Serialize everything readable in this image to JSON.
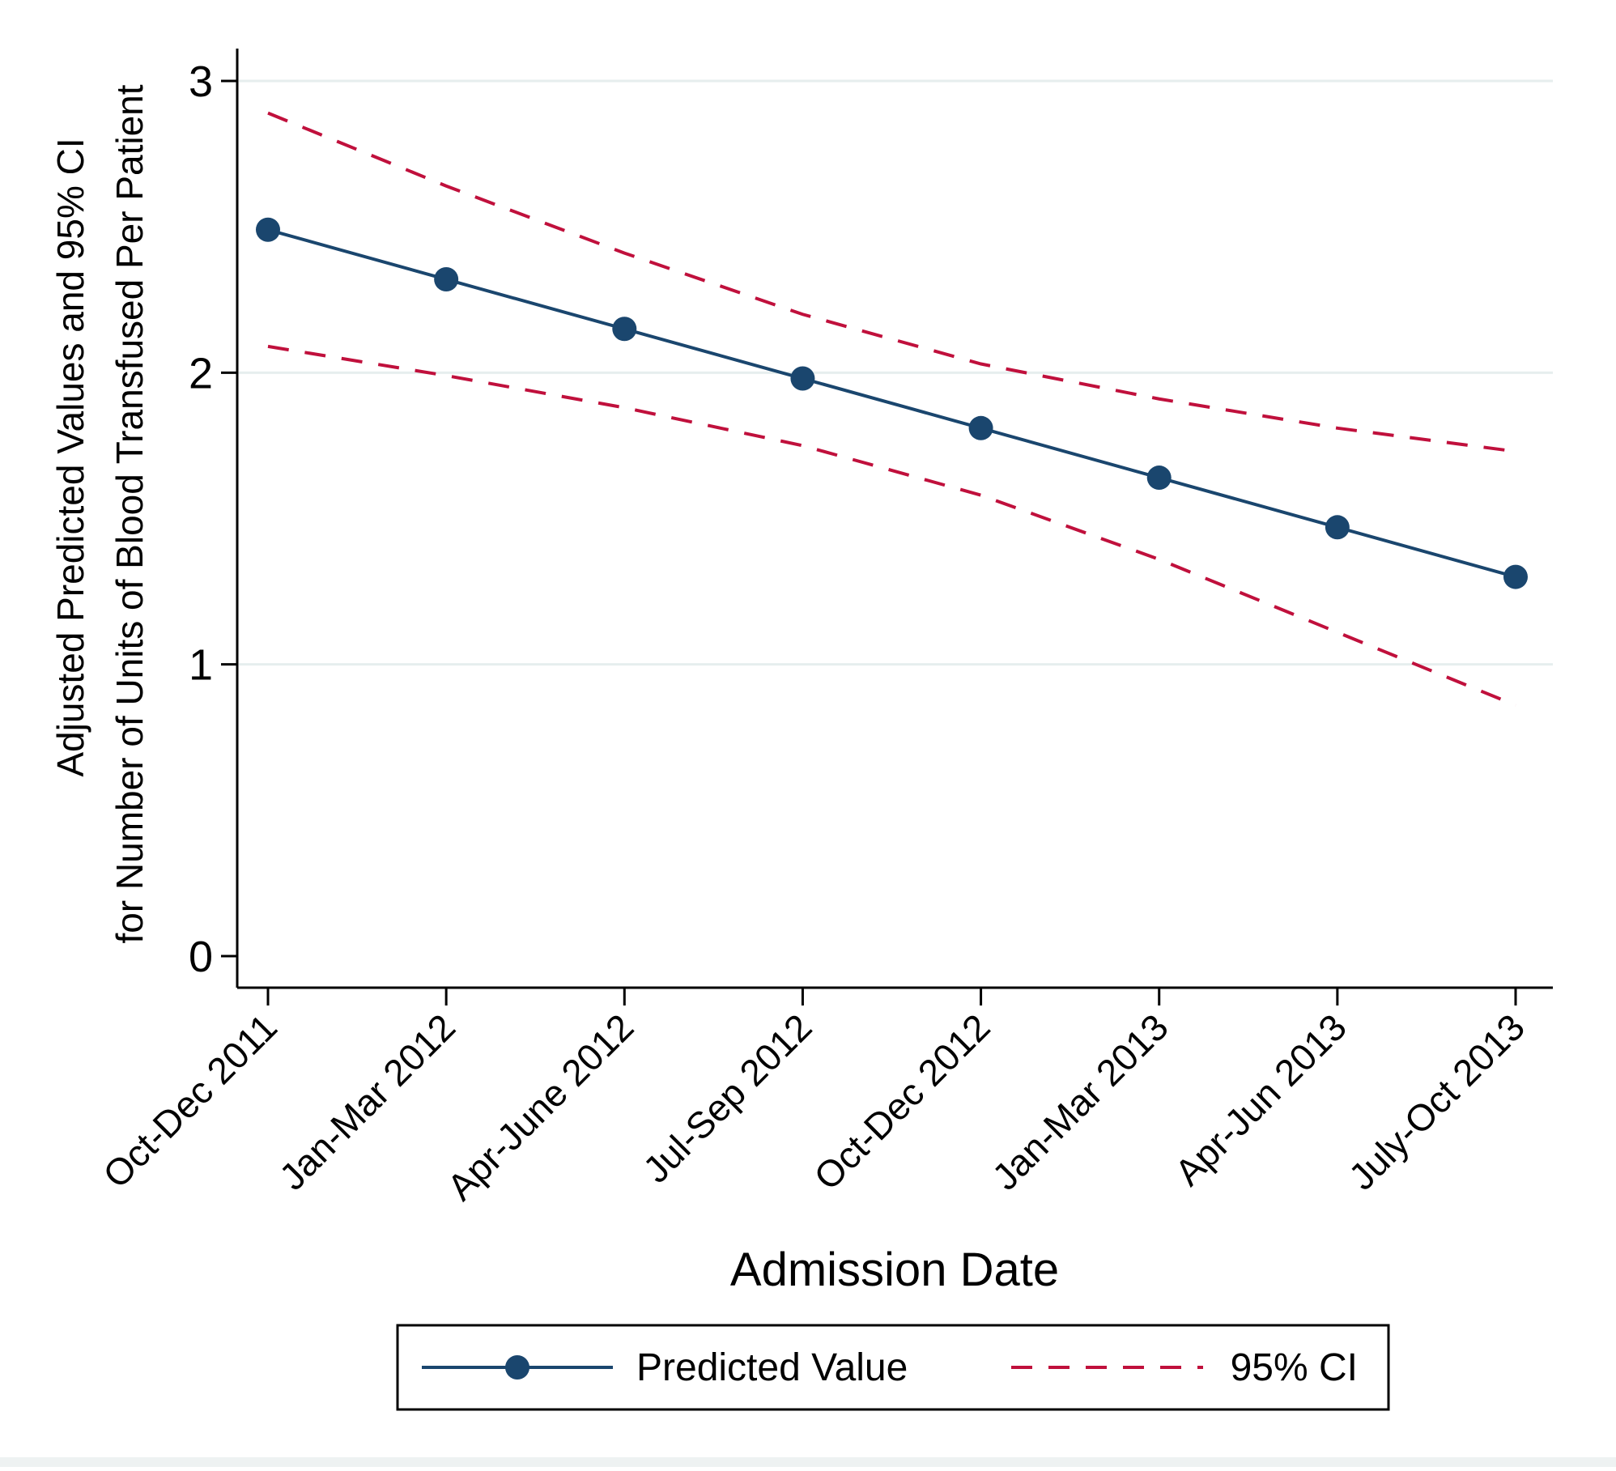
{
  "chart_data": {
    "type": "line",
    "title": "",
    "xlabel": "Admission Date",
    "ylabel_lines": [
      "Adjusted Predicted Values and 95% CI",
      "for Number of Units of Blood Transfused Per Patient"
    ],
    "categories": [
      "Oct-Dec 2011",
      "Jan-Mar 2012",
      "Apr-June 2012",
      "Jul-Sep 2012",
      "Oct-Dec 2012",
      "Jan-Mar 2013",
      "Apr-Jun 2013",
      "July-Oct 2013"
    ],
    "ylim": [
      -0.11,
      3.1
    ],
    "yticks": [
      0,
      1,
      2,
      3
    ],
    "grid": true,
    "series": [
      {
        "name": "Predicted Value",
        "style": "solid-with-markers",
        "color": "#1a466e",
        "values": [
          2.49,
          2.32,
          2.15,
          1.98,
          1.81,
          1.64,
          1.47,
          1.3
        ]
      },
      {
        "name": "95% CI",
        "style": "dashed",
        "color": "#c0103c",
        "upper": [
          2.89,
          2.64,
          2.41,
          2.2,
          2.03,
          1.91,
          1.81,
          1.73
        ],
        "lower": [
          2.09,
          1.99,
          1.88,
          1.75,
          1.58,
          1.36,
          1.11,
          0.86
        ]
      }
    ],
    "legend": {
      "position": "bottom",
      "entries": [
        "Predicted Value",
        "95% CI"
      ]
    }
  },
  "colors": {
    "line": "#1a466e",
    "ci": "#c0103c",
    "grid": "#e6eeee",
    "axis": "#000000"
  }
}
